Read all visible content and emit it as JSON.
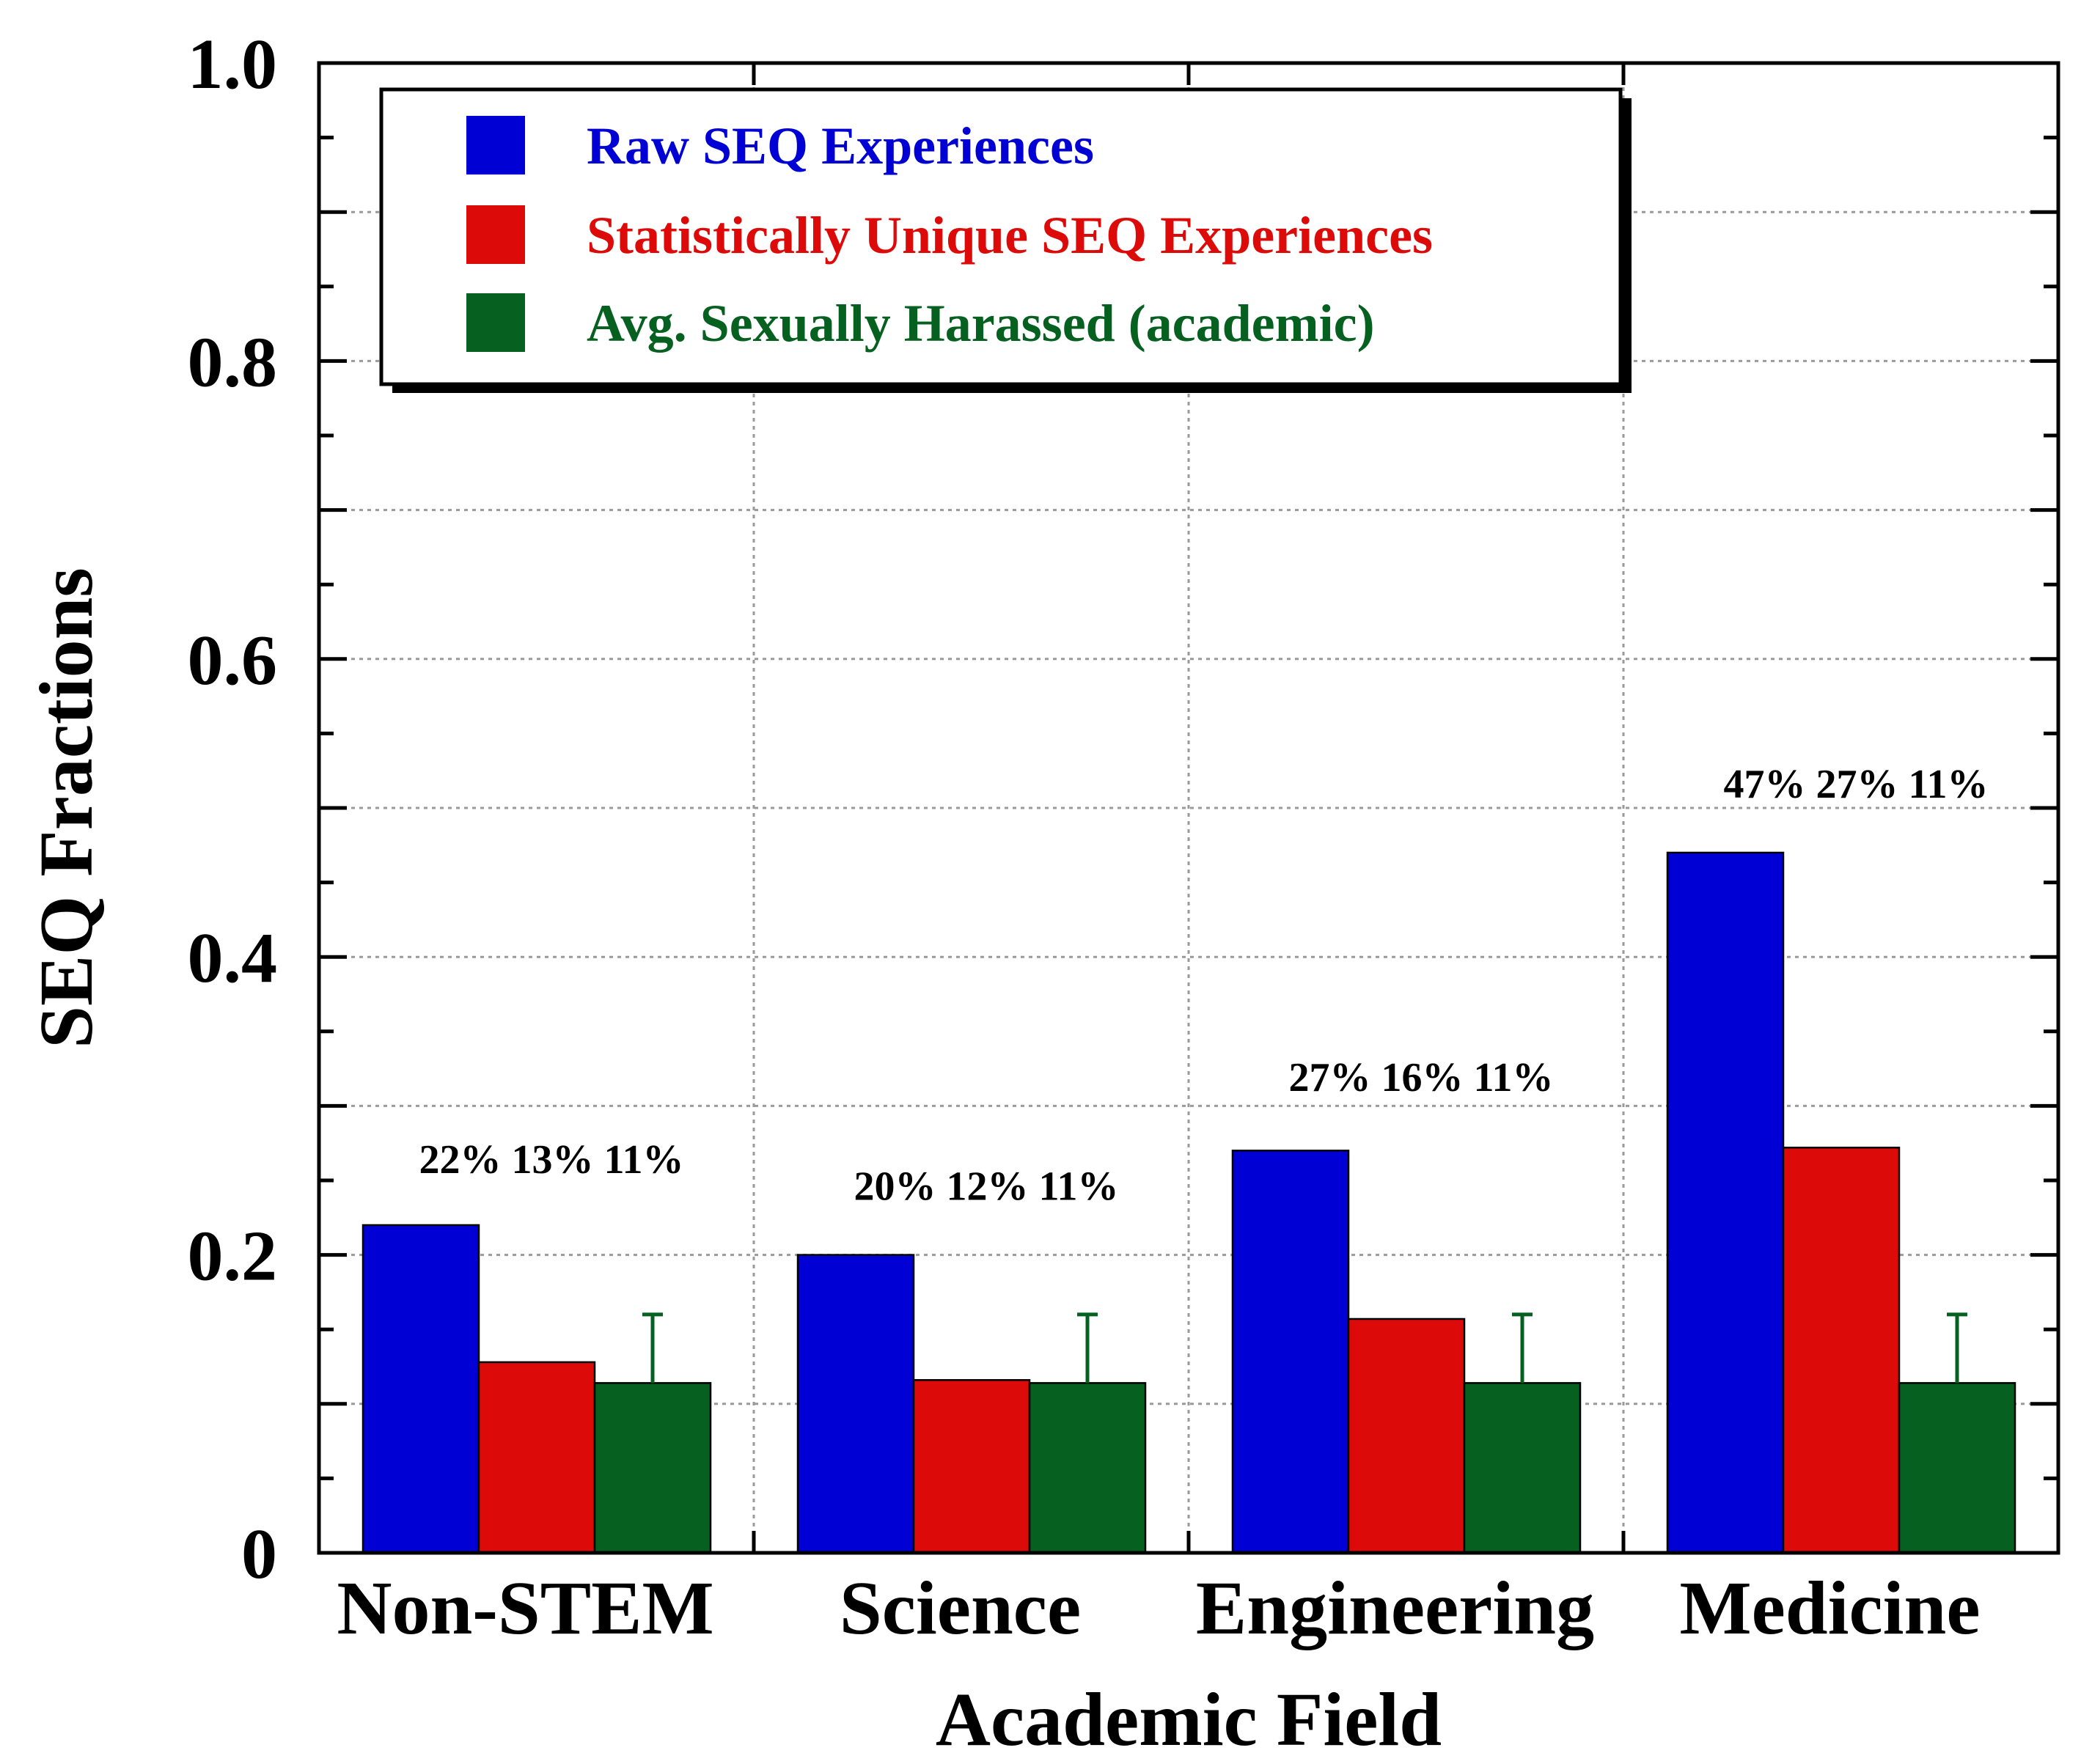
{
  "chart_data": {
    "type": "bar",
    "title": "",
    "xlabel": "Academic Field",
    "ylabel": "SEQ Fractions",
    "ylim": [
      0,
      1.0
    ],
    "yticks": [
      {
        "value": 0,
        "label": "0"
      },
      {
        "value": 0.2,
        "label": "0.2"
      },
      {
        "value": 0.4,
        "label": "0.4"
      },
      {
        "value": 0.6,
        "label": "0.6"
      },
      {
        "value": 0.8,
        "label": "0.8"
      },
      {
        "value": 1.0,
        "label": "1.0"
      }
    ],
    "grid": true,
    "legend_position": "top-left",
    "categories": [
      "Non-STEM",
      "Science",
      "Engineering",
      "Medicine"
    ],
    "series": [
      {
        "name": "Raw SEQ Experiences",
        "color": "#0000d4",
        "values": [
          0.22,
          0.2,
          0.27,
          0.47
        ]
      },
      {
        "name": "Statistically Unique SEQ Experiences",
        "color": "#dd0a0a",
        "values": [
          0.128,
          0.116,
          0.157,
          0.272
        ]
      },
      {
        "name": "Avg. Sexually Harassed (academic)",
        "color": "#066020",
        "values": [
          0.114,
          0.114,
          0.114,
          0.114
        ],
        "error_upper": [
          0.16,
          0.16,
          0.16,
          0.16
        ]
      }
    ],
    "annotations": [
      "22% 13% 11%",
      "20% 12% 11%",
      "27% 16% 11%",
      "47% 27% 11%"
    ],
    "annotation_values": [
      0.255,
      0.237,
      0.31,
      0.507
    ]
  }
}
